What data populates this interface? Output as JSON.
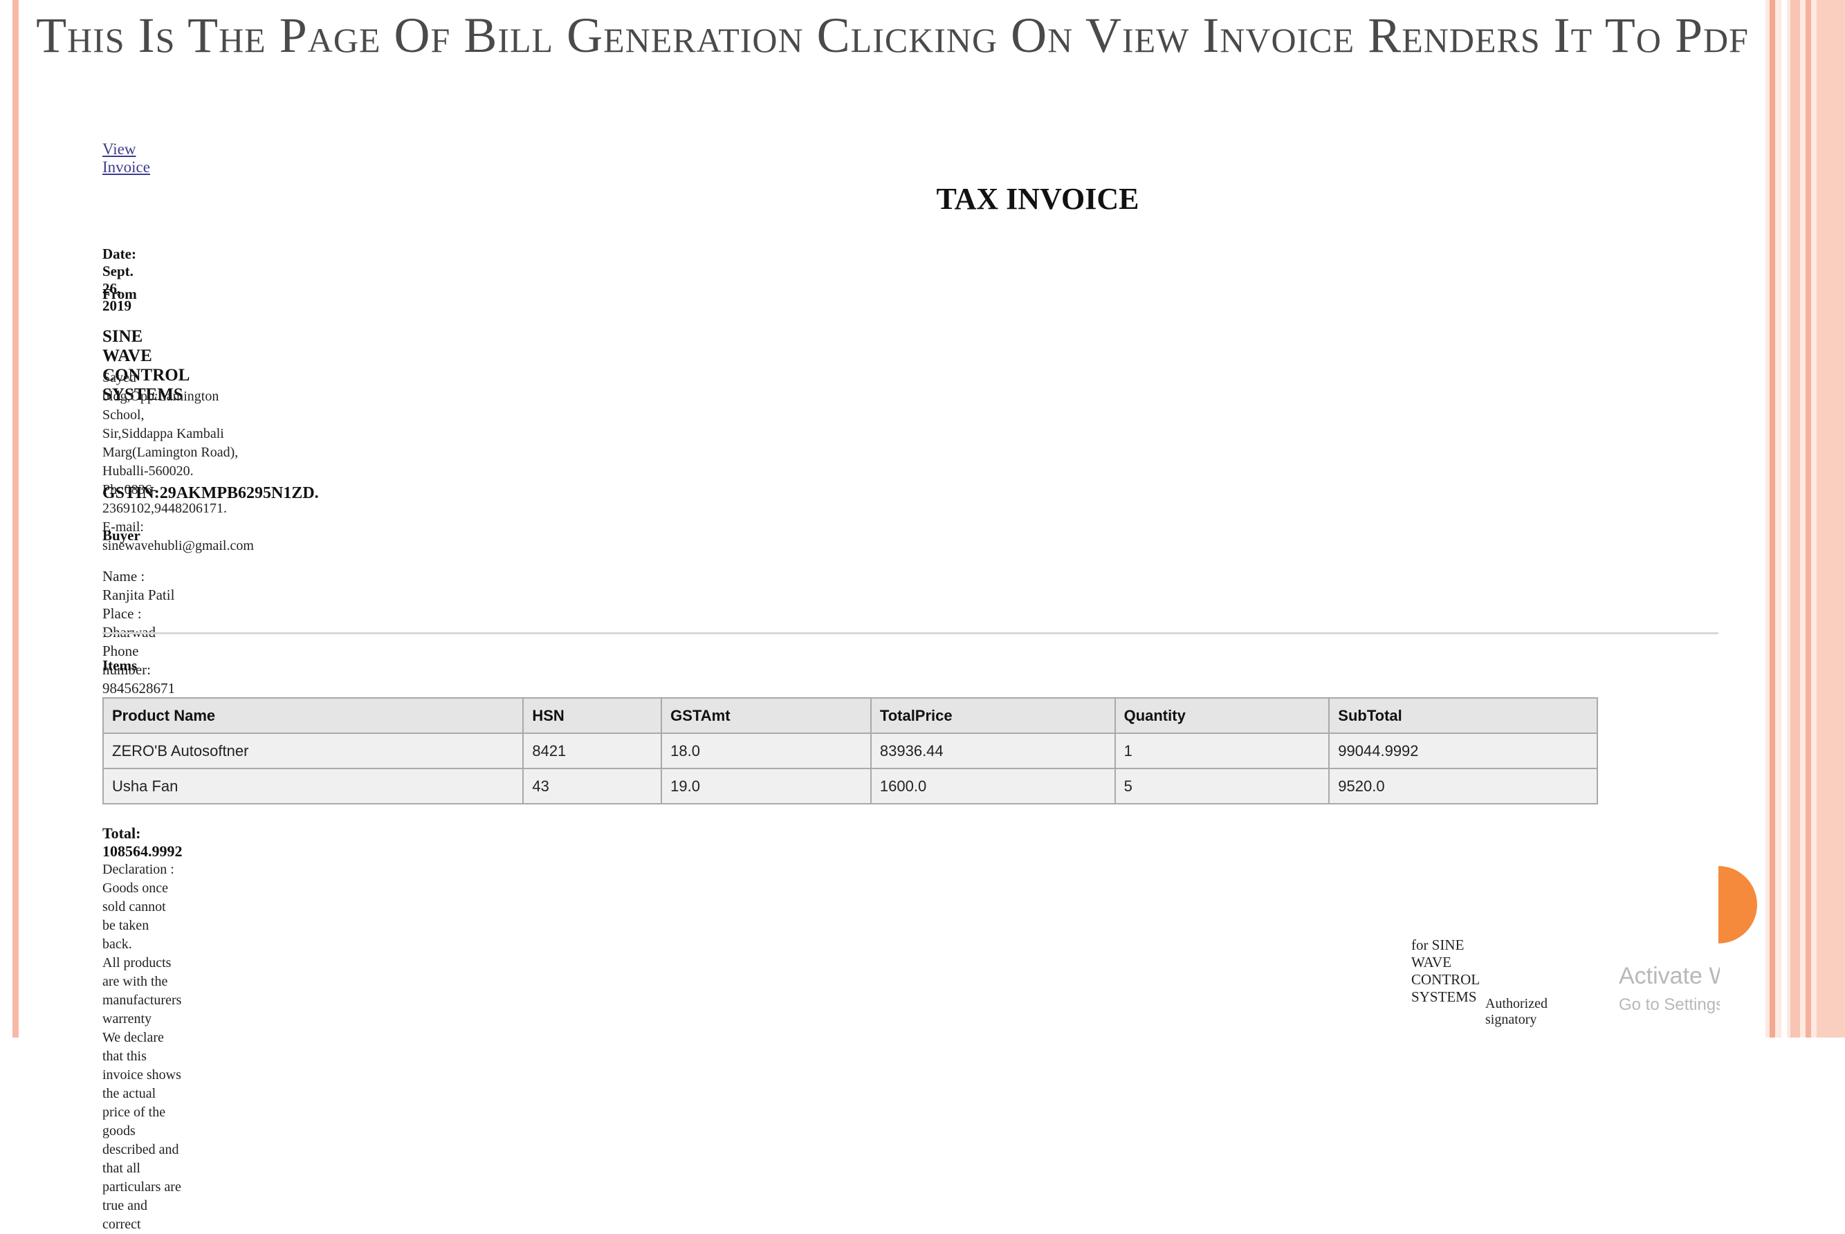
{
  "slide": {
    "title": "This Is The Page Of Bill Generation Clicking On View Invoice Renders It To Pdf"
  },
  "invoice": {
    "view_link": "View Invoice",
    "heading": "TAX INVOICE",
    "date": "Date: Sept. 26, 2019",
    "from_label": "From",
    "company": "SINE WAVE CONTROL SYSTEMS",
    "address_lines": [
      "Sayed bldg,Opp:Lamington School,",
      "Sir,Siddappa Kambali Marg(Lamington Road),",
      "Huballi-560020.",
      "Ph: 0836-2369102,9448206171.",
      "E-mail: sinewavehubli@gmail.com"
    ],
    "gstin": "GSTIN:29AKMPB6295N1ZD.",
    "buyer_label": "Buyer",
    "buyer_lines": [
      "Name : Ranjita Patil",
      "Place : Dharwad",
      "Phone number: 9845628671"
    ],
    "items_label": "Items",
    "table": {
      "headers": [
        "Product Name",
        "HSN",
        "GSTAmt",
        "TotalPrice",
        "Quantity",
        "SubTotal"
      ],
      "rows": [
        [
          "ZERO'B Autosoftner",
          "8421",
          "18.0",
          "83936.44",
          "1",
          "99044.9992"
        ],
        [
          "Usha Fan",
          "43",
          "19.0",
          "1600.0",
          "5",
          "9520.0"
        ]
      ]
    },
    "total": "Total: 108564.9992",
    "declaration_lines": [
      "Declaration : Goods once sold cannot be taken back.",
      "All products are with the manufacturers warrenty",
      "We declare that this invoice shows the actual price of the goods",
      "described and that all particulars are true and correct"
    ],
    "for_company": "for SINE WAVE CONTROL SYSTEMS",
    "authorized": "Authorized signatory"
  },
  "watermark": {
    "line1": "Activate Windows",
    "line2": "Go to Settings to activate Windows."
  },
  "colors": {
    "accent_orange": "#f58a3c",
    "border_peach": "#f7b8a6",
    "link": "#3d3a8c"
  }
}
